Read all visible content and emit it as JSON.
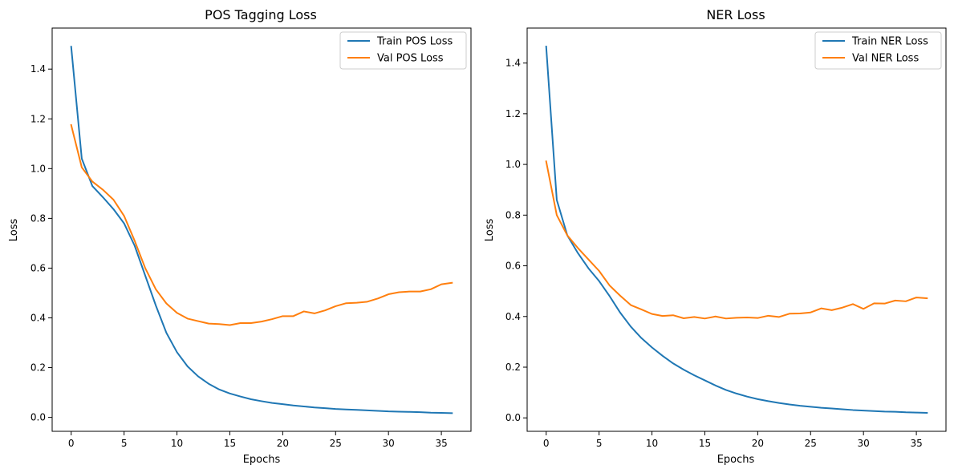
{
  "chart_data": [
    {
      "type": "line",
      "title": "POS Tagging Loss",
      "xlabel": "Epochs",
      "ylabel": "Loss",
      "xlim": [
        -1.8,
        37.8
      ],
      "ylim": [
        -0.056,
        1.565
      ],
      "xticks": [
        0,
        5,
        10,
        15,
        20,
        25,
        30,
        35
      ],
      "yticks": [
        0.0,
        0.2,
        0.4,
        0.6,
        0.8,
        1.0,
        1.2,
        1.4
      ],
      "ytick_labels": [
        "0.0",
        "0.2",
        "0.4",
        "0.6",
        "0.8",
        "1.0",
        "1.2",
        "1.4"
      ],
      "legend_position": "top-right",
      "grid": false,
      "x": [
        0,
        1,
        2,
        3,
        4,
        5,
        6,
        7,
        8,
        9,
        10,
        11,
        12,
        13,
        14,
        15,
        16,
        17,
        18,
        19,
        20,
        21,
        22,
        23,
        24,
        25,
        26,
        27,
        28,
        29,
        30,
        31,
        32,
        33,
        34,
        35,
        36
      ],
      "series": [
        {
          "name": "Train POS Loss",
          "color": "#1f77b4",
          "values": [
            1.49,
            1.04,
            0.93,
            0.885,
            0.837,
            0.78,
            0.69,
            0.57,
            0.45,
            0.34,
            0.262,
            0.205,
            0.165,
            0.135,
            0.112,
            0.096,
            0.084,
            0.073,
            0.065,
            0.058,
            0.053,
            0.048,
            0.044,
            0.04,
            0.037,
            0.034,
            0.032,
            0.03,
            0.028,
            0.026,
            0.024,
            0.023,
            0.022,
            0.021,
            0.019,
            0.018,
            0.017
          ]
        },
        {
          "name": "Val POS Loss",
          "color": "#ff7f0e",
          "values": [
            1.175,
            1.005,
            0.948,
            0.915,
            0.875,
            0.81,
            0.71,
            0.6,
            0.515,
            0.458,
            0.42,
            0.397,
            0.387,
            0.377,
            0.375,
            0.371,
            0.379,
            0.379,
            0.385,
            0.395,
            0.407,
            0.407,
            0.426,
            0.418,
            0.43,
            0.447,
            0.459,
            0.461,
            0.465,
            0.478,
            0.495,
            0.503,
            0.506,
            0.506,
            0.515,
            0.535,
            0.541
          ]
        }
      ]
    },
    {
      "type": "line",
      "title": "NER Loss",
      "xlabel": "Epochs",
      "ylabel": "Loss",
      "xlim": [
        -1.8,
        37.8
      ],
      "ylim": [
        -0.053,
        1.538
      ],
      "xticks": [
        0,
        5,
        10,
        15,
        20,
        25,
        30,
        35
      ],
      "yticks": [
        0.0,
        0.2,
        0.4,
        0.6,
        0.8,
        1.0,
        1.2,
        1.4
      ],
      "ytick_labels": [
        "0.0",
        "0.2",
        "0.4",
        "0.6",
        "0.8",
        "1.0",
        "1.2",
        "1.4"
      ],
      "legend_position": "top-right",
      "grid": false,
      "x": [
        0,
        1,
        2,
        3,
        4,
        5,
        6,
        7,
        8,
        9,
        10,
        11,
        12,
        13,
        14,
        15,
        16,
        17,
        18,
        19,
        20,
        21,
        22,
        23,
        24,
        25,
        26,
        27,
        28,
        29,
        30,
        31,
        32,
        33,
        34,
        35,
        36
      ],
      "series": [
        {
          "name": "Train NER Loss",
          "color": "#1f77b4",
          "values": [
            1.465,
            0.86,
            0.72,
            0.65,
            0.59,
            0.54,
            0.48,
            0.415,
            0.36,
            0.315,
            0.278,
            0.245,
            0.215,
            0.19,
            0.168,
            0.148,
            0.128,
            0.11,
            0.096,
            0.084,
            0.074,
            0.066,
            0.059,
            0.053,
            0.048,
            0.044,
            0.04,
            0.037,
            0.034,
            0.031,
            0.029,
            0.027,
            0.025,
            0.024,
            0.022,
            0.021,
            0.02
          ]
        },
        {
          "name": "Val NER Loss",
          "color": "#ff7f0e",
          "values": [
            1.012,
            0.8,
            0.72,
            0.67,
            0.625,
            0.58,
            0.522,
            0.482,
            0.445,
            0.428,
            0.41,
            0.402,
            0.405,
            0.393,
            0.398,
            0.392,
            0.4,
            0.392,
            0.395,
            0.396,
            0.394,
            0.403,
            0.398,
            0.411,
            0.412,
            0.416,
            0.432,
            0.425,
            0.435,
            0.449,
            0.43,
            0.452,
            0.451,
            0.463,
            0.46,
            0.475,
            0.472
          ]
        }
      ]
    }
  ]
}
